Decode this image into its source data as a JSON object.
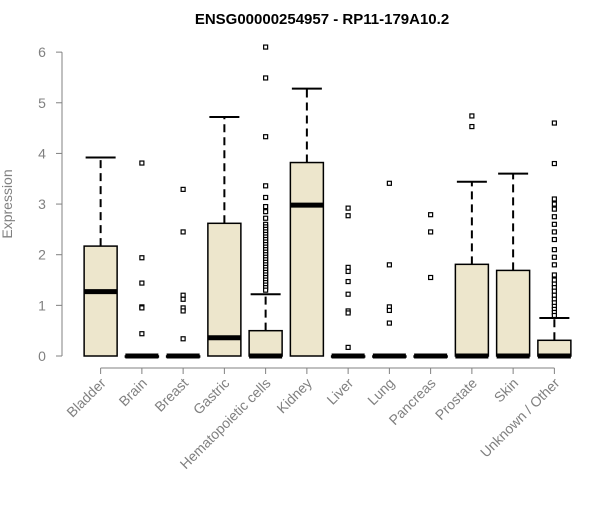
{
  "chart_data": {
    "type": "boxplot",
    "title": "ENSG00000254957 - RP11-179A10.2",
    "xlabel": "",
    "ylabel": "Expression",
    "ylim": [
      0,
      6.2
    ],
    "yticks": [
      0,
      1,
      2,
      3,
      4,
      5,
      6
    ],
    "grid": false,
    "legend": "none",
    "box_fill": "#ede6cc",
    "box_stroke": "#000000",
    "categories": [
      "Bladder",
      "Brain",
      "Breast",
      "Gastric",
      "Hematopoietic cells",
      "Kidney",
      "Liver",
      "Lung",
      "Pancreas",
      "Prostate",
      "Skin",
      "Unknown / Other"
    ],
    "boxes": [
      {
        "category": "Bladder",
        "q1": 0,
        "median": 1.27,
        "q3": 2.17,
        "whisker_low": 0,
        "whisker_high": 3.92,
        "outliers": []
      },
      {
        "category": "Brain",
        "q1": 0,
        "median": 0,
        "q3": 0,
        "whisker_low": 0,
        "whisker_high": 0,
        "outliers": [
          3.81,
          1.94,
          1.44,
          0.97,
          0.95,
          0.44
        ]
      },
      {
        "category": "Breast",
        "q1": 0,
        "median": 0,
        "q3": 0,
        "whisker_low": 0,
        "whisker_high": 0,
        "outliers": [
          3.29,
          2.45,
          1.2,
          1.12,
          0.95,
          0.89,
          0.34
        ]
      },
      {
        "category": "Gastric",
        "q1": 0,
        "median": 0.36,
        "q3": 2.62,
        "whisker_low": 0,
        "whisker_high": 4.72,
        "outliers": []
      },
      {
        "category": "Hematopoietic cells",
        "q1": 0,
        "median": 0,
        "q3": 0.5,
        "whisker_low": 0,
        "whisker_high": 1.22,
        "outliers": [
          6.1,
          5.49,
          4.33,
          3.36,
          3.13,
          2.95,
          2.85,
          2.72,
          2.6,
          2.55,
          2.5,
          2.45,
          2.4,
          2.35,
          2.3,
          2.25,
          2.2,
          2.15,
          2.1,
          2.05,
          2.0,
          1.95,
          1.9,
          1.85,
          1.8,
          1.75,
          1.7,
          1.65,
          1.6,
          1.55,
          1.5,
          1.45,
          1.4,
          1.35,
          1.3
        ]
      },
      {
        "category": "Kidney",
        "q1": 0,
        "median": 2.98,
        "q3": 3.82,
        "whisker_low": 0,
        "whisker_high": 5.28,
        "outliers": []
      },
      {
        "category": "Liver",
        "q1": 0,
        "median": 0,
        "q3": 0,
        "whisker_low": 0,
        "whisker_high": 0,
        "outliers": [
          2.92,
          2.77,
          1.75,
          1.67,
          1.47,
          1.22,
          0.89,
          0.85,
          0.17
        ]
      },
      {
        "category": "Lung",
        "q1": 0,
        "median": 0,
        "q3": 0,
        "whisker_low": 0,
        "whisker_high": 0,
        "outliers": [
          3.41,
          1.8,
          0.97,
          0.9,
          0.65
        ]
      },
      {
        "category": "Pancreas",
        "q1": 0,
        "median": 0,
        "q3": 0,
        "whisker_low": 0,
        "whisker_high": 0,
        "outliers": [
          2.79,
          2.45,
          1.55
        ]
      },
      {
        "category": "Prostate",
        "q1": 0,
        "median": 0,
        "q3": 1.81,
        "whisker_low": 0,
        "whisker_high": 3.44,
        "outliers": [
          4.74,
          4.53
        ]
      },
      {
        "category": "Skin",
        "q1": 0,
        "median": 0,
        "q3": 1.69,
        "whisker_low": 0,
        "whisker_high": 3.6,
        "outliers": []
      },
      {
        "category": "Unknown / Other",
        "q1": 0,
        "median": 0,
        "q3": 0.31,
        "whisker_low": 0,
        "whisker_high": 0.75,
        "outliers": [
          4.6,
          3.8,
          3.1,
          3.0,
          2.9,
          2.75,
          2.6,
          2.45,
          2.3,
          2.1,
          1.95,
          1.8,
          1.6,
          1.5,
          1.42,
          1.35,
          1.28,
          1.2,
          1.12,
          1.05,
          0.98,
          0.92,
          0.86,
          0.8
        ]
      }
    ]
  }
}
